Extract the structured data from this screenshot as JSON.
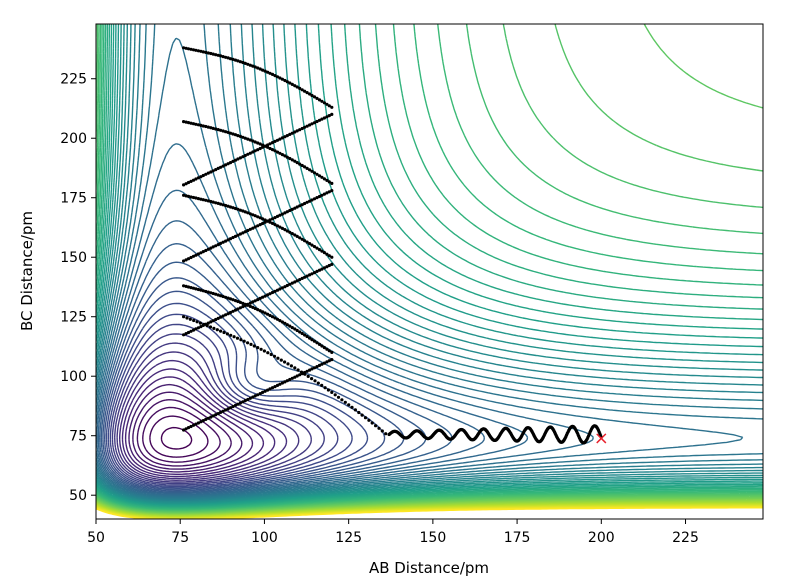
{
  "chart_data": {
    "type": "contour",
    "title": "",
    "xlabel": "AB Distance/pm",
    "ylabel": "BC Distance/pm",
    "xlim": [
      50,
      248
    ],
    "ylim": [
      40,
      248
    ],
    "xticks": [
      50,
      75,
      100,
      125,
      150,
      175,
      200,
      225
    ],
    "yticks": [
      50,
      75,
      100,
      125,
      150,
      175,
      200,
      225
    ],
    "colormap": "viridis",
    "grid": false,
    "legend": "none",
    "contour_levels": 60,
    "trajectory_color": "#000000",
    "end_marker": {
      "x": 200,
      "y": 74,
      "symbol": "×",
      "color": "#e8222d"
    },
    "trajectory": {
      "description_points": [
        {
          "x": 76,
          "y": 125
        },
        {
          "x": 100,
          "y": 110
        },
        {
          "x": 125,
          "y": 90
        },
        {
          "x": 137,
          "y": 78
        },
        {
          "x": 150,
          "y": 76
        },
        {
          "x": 175,
          "y": 75
        },
        {
          "x": 200,
          "y": 74
        }
      ]
    }
  }
}
